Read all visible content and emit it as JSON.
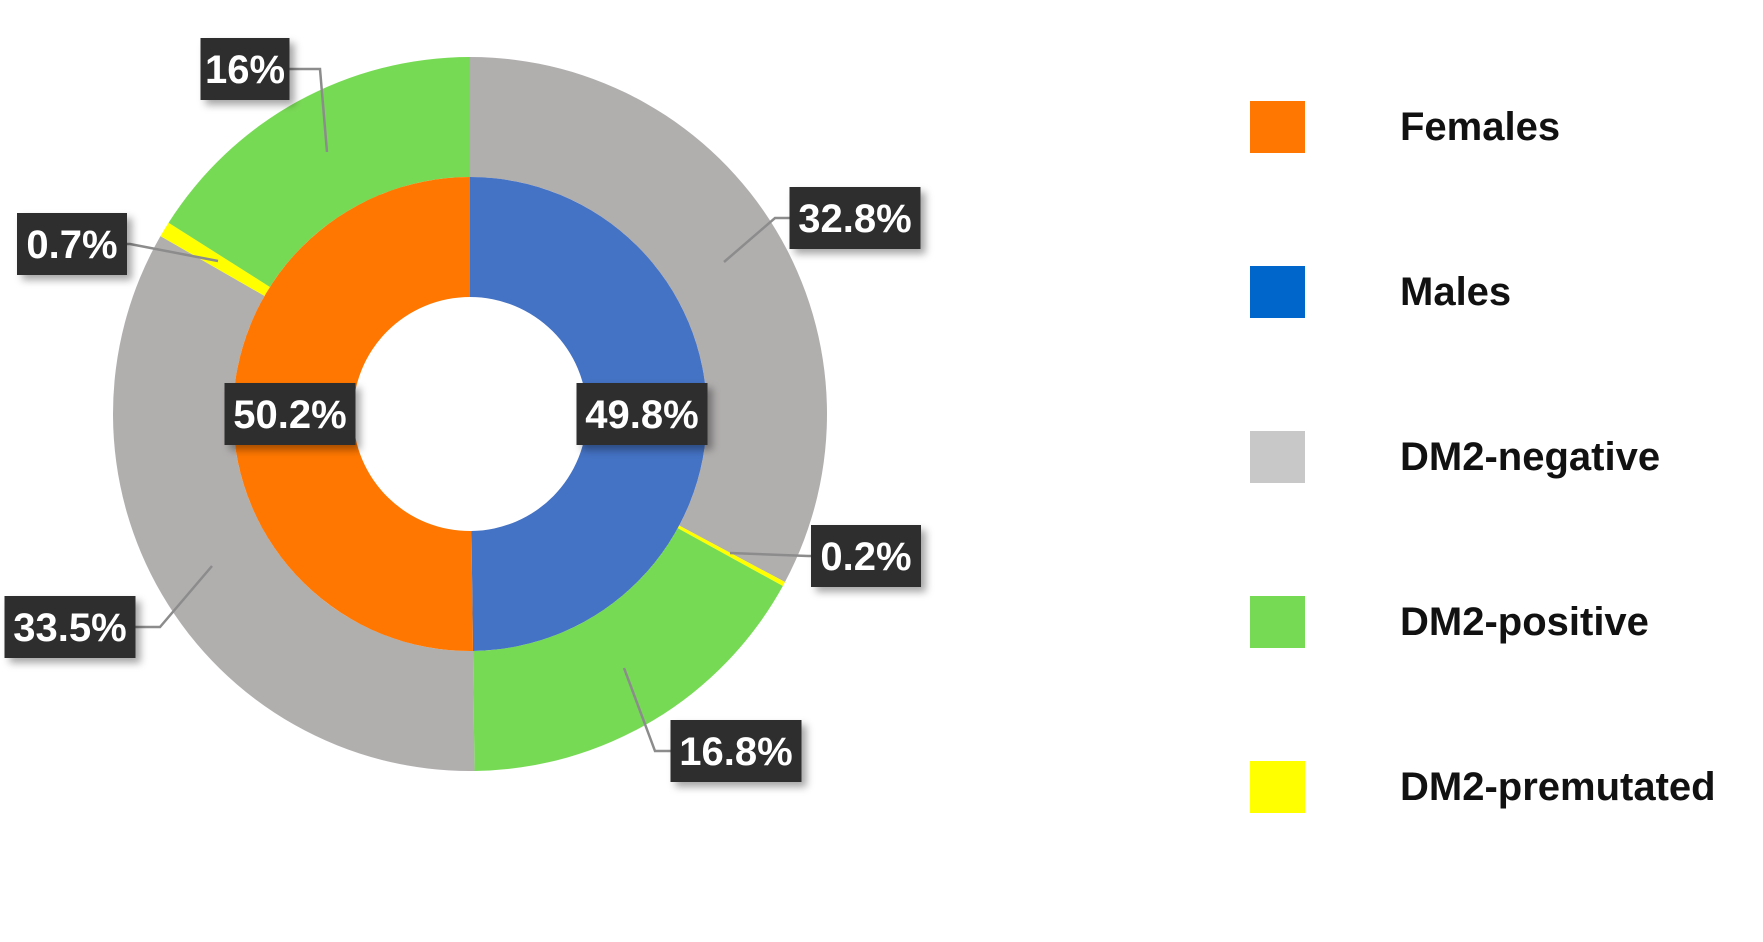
{
  "chart_data": {
    "type": "pie",
    "subtype": "nested-donut",
    "rings": [
      {
        "name": "inner",
        "slices": [
          {
            "label": "Males",
            "value": 49.8,
            "display": "49.8%",
            "color": "#4472C4"
          },
          {
            "label": "Females",
            "value": 50.2,
            "display": "50.2%",
            "color": "#FF7700"
          }
        ]
      },
      {
        "name": "outer",
        "slices": [
          {
            "label": "DM2-negative",
            "value": 32.8,
            "display": "32.8%",
            "color": "#B1AEAE"
          },
          {
            "label": "DM2-premutated",
            "value": 0.2,
            "display": "0.2%",
            "color": "#FFFF00"
          },
          {
            "label": "DM2-positive",
            "value": 16.8,
            "display": "16.8%",
            "color": "#77DA55"
          },
          {
            "label": "DM2-negative",
            "value": 33.5,
            "display": "33.5%",
            "color": "#B1AEAE"
          },
          {
            "label": "DM2-premutated",
            "value": 0.7,
            "display": "0.7%",
            "color": "#FFFF00"
          },
          {
            "label": "DM2-positive",
            "value": 16.0,
            "display": "16%",
            "color": "#77DA55"
          }
        ]
      }
    ],
    "legend": {
      "position": "right",
      "items": [
        {
          "label": "Females",
          "color": "#FF7700"
        },
        {
          "label": "Males",
          "color": "#0066CC"
        },
        {
          "label": "DM2-negative",
          "color": "#C8C8C8"
        },
        {
          "label": "DM2-positive",
          "color": "#77DA55"
        },
        {
          "label": "DM2-premutated",
          "color": "#FFFF00"
        }
      ]
    },
    "label_style": {
      "background": "#2E2E2E",
      "text_color": "#FFFFFF"
    }
  }
}
